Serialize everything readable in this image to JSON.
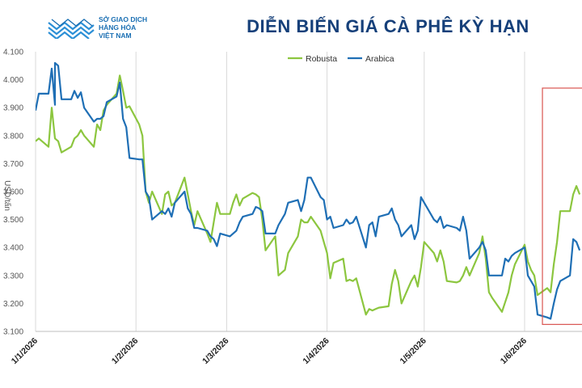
{
  "header": {
    "logo_lines": [
      "SỞ GIAO DỊCH",
      "HÀNG HÓA",
      "VIỆT NAM"
    ],
    "title": "DIỄN BIẾN GIÁ CÀ PHÊ KỲ HẠN"
  },
  "colors": {
    "robusta": "#8cc63f",
    "arabica": "#1f6fb5",
    "title": "#16407a",
    "highlight_box": "#d9534f",
    "gridline": "#d9d9d9"
  },
  "chart_data": {
    "type": "line",
    "title": "DIỄN BIẾN GIÁ CÀ PHÊ KỲ HẠN",
    "ylabel": "USD/tấn",
    "xlabel": "",
    "ylim": [
      3100,
      4100
    ],
    "yticks": [
      "3.100",
      "3.200",
      "3.300",
      "3.400",
      "3.500",
      "3.600",
      "3.700",
      "3.800",
      "3.900",
      "4.000",
      "4.100"
    ],
    "xlim": [
      "2026-01-01",
      "2026-06-18"
    ],
    "xticks": [
      {
        "date": "2026-01-01",
        "label": "1/1/2026"
      },
      {
        "date": "2026-02-01",
        "label": "1/2/2026"
      },
      {
        "date": "2026-03-01",
        "label": "1/3/2026"
      },
      {
        "date": "2026-04-01",
        "label": "1/4/2026"
      },
      {
        "date": "2026-05-01",
        "label": "1/5/2026"
      },
      {
        "date": "2026-06-01",
        "label": "1/6/2026"
      }
    ],
    "grid": {
      "vertical": true,
      "horizontal": false
    },
    "legend": "top-center",
    "highlight": {
      "x_from": "2026-06-08",
      "x_to": "2026-06-18",
      "y_from": 3125,
      "y_to": 3970
    },
    "series": [
      {
        "name": "Robusta",
        "color": "#8cc63f",
        "points": [
          [
            "2026-01-01",
            3780
          ],
          [
            "2026-01-02",
            3790
          ],
          [
            "2026-01-05",
            3760
          ],
          [
            "2026-01-06",
            3900
          ],
          [
            "2026-01-07",
            3790
          ],
          [
            "2026-01-08",
            3780
          ],
          [
            "2026-01-09",
            3740
          ],
          [
            "2026-01-12",
            3760
          ],
          [
            "2026-01-13",
            3790
          ],
          [
            "2026-01-14",
            3800
          ],
          [
            "2026-01-15",
            3820
          ],
          [
            "2026-01-16",
            3800
          ],
          [
            "2026-01-19",
            3760
          ],
          [
            "2026-01-20",
            3840
          ],
          [
            "2026-01-21",
            3820
          ],
          [
            "2026-01-22",
            3890
          ],
          [
            "2026-01-23",
            3910
          ],
          [
            "2026-01-26",
            3950
          ],
          [
            "2026-01-27",
            4015
          ],
          [
            "2026-01-28",
            3960
          ],
          [
            "2026-01-29",
            3900
          ],
          [
            "2026-01-30",
            3905
          ],
          [
            "2026-02-02",
            3840
          ],
          [
            "2026-02-03",
            3800
          ],
          [
            "2026-02-04",
            3600
          ],
          [
            "2026-02-05",
            3560
          ],
          [
            "2026-02-06",
            3600
          ],
          [
            "2026-02-09",
            3520
          ],
          [
            "2026-02-10",
            3590
          ],
          [
            "2026-02-11",
            3600
          ],
          [
            "2026-02-12",
            3550
          ],
          [
            "2026-02-13",
            3560
          ],
          [
            "2026-02-16",
            3650
          ],
          [
            "2026-02-17",
            3590
          ],
          [
            "2026-02-18",
            3530
          ],
          [
            "2026-02-19",
            3480
          ],
          [
            "2026-02-20",
            3530
          ],
          [
            "2026-02-23",
            3450
          ],
          [
            "2026-02-24",
            3420
          ],
          [
            "2026-02-25",
            3490
          ],
          [
            "2026-02-26",
            3560
          ],
          [
            "2026-02-27",
            3520
          ],
          [
            "2026-03-02",
            3520
          ],
          [
            "2026-03-03",
            3560
          ],
          [
            "2026-03-04",
            3590
          ],
          [
            "2026-03-05",
            3550
          ],
          [
            "2026-03-06",
            3575
          ],
          [
            "2026-03-09",
            3595
          ],
          [
            "2026-03-10",
            3590
          ],
          [
            "2026-03-11",
            3580
          ],
          [
            "2026-03-12",
            3500
          ],
          [
            "2026-03-13",
            3390
          ],
          [
            "2026-03-16",
            3440
          ],
          [
            "2026-03-17",
            3300
          ],
          [
            "2026-03-18",
            3310
          ],
          [
            "2026-03-19",
            3320
          ],
          [
            "2026-03-20",
            3380
          ],
          [
            "2026-03-23",
            3440
          ],
          [
            "2026-03-24",
            3500
          ],
          [
            "2026-03-25",
            3490
          ],
          [
            "2026-03-26",
            3490
          ],
          [
            "2026-03-27",
            3510
          ],
          [
            "2026-03-30",
            3460
          ],
          [
            "2026-03-31",
            3420
          ],
          [
            "2026-04-01",
            3380
          ],
          [
            "2026-04-02",
            3290
          ],
          [
            "2026-04-03",
            3345
          ],
          [
            "2026-04-06",
            3360
          ],
          [
            "2026-04-07",
            3280
          ],
          [
            "2026-04-08",
            3285
          ],
          [
            "2026-04-09",
            3280
          ],
          [
            "2026-04-10",
            3290
          ],
          [
            "2026-04-13",
            3160
          ],
          [
            "2026-04-14",
            3180
          ],
          [
            "2026-04-15",
            3175
          ],
          [
            "2026-04-16",
            3180
          ],
          [
            "2026-04-17",
            3185
          ],
          [
            "2026-04-20",
            3190
          ],
          [
            "2026-04-21",
            3270
          ],
          [
            "2026-04-22",
            3320
          ],
          [
            "2026-04-23",
            3280
          ],
          [
            "2026-04-24",
            3200
          ],
          [
            "2026-04-27",
            3280
          ],
          [
            "2026-04-28",
            3300
          ],
          [
            "2026-04-29",
            3260
          ],
          [
            "2026-04-30",
            3330
          ],
          [
            "2026-05-01",
            3420
          ],
          [
            "2026-05-04",
            3380
          ],
          [
            "2026-05-05",
            3350
          ],
          [
            "2026-05-06",
            3390
          ],
          [
            "2026-05-07",
            3350
          ],
          [
            "2026-05-08",
            3280
          ],
          [
            "2026-05-11",
            3275
          ],
          [
            "2026-05-12",
            3280
          ],
          [
            "2026-05-13",
            3300
          ],
          [
            "2026-05-14",
            3330
          ],
          [
            "2026-05-15",
            3300
          ],
          [
            "2026-05-18",
            3380
          ],
          [
            "2026-05-19",
            3440
          ],
          [
            "2026-05-20",
            3360
          ],
          [
            "2026-05-21",
            3240
          ],
          [
            "2026-05-22",
            3220
          ],
          [
            "2026-05-25",
            3170
          ],
          [
            "2026-05-26",
            3205
          ],
          [
            "2026-05-27",
            3240
          ],
          [
            "2026-05-28",
            3300
          ],
          [
            "2026-05-29",
            3340
          ],
          [
            "2026-06-01",
            3410
          ],
          [
            "2026-06-02",
            3350
          ],
          [
            "2026-06-03",
            3320
          ],
          [
            "2026-06-04",
            3300
          ],
          [
            "2026-06-05",
            3230
          ],
          [
            "2026-06-08",
            3255
          ],
          [
            "2026-06-09",
            3240
          ],
          [
            "2026-06-10",
            3340
          ],
          [
            "2026-06-11",
            3420
          ],
          [
            "2026-06-12",
            3530
          ],
          [
            "2026-06-15",
            3530
          ],
          [
            "2026-06-16",
            3590
          ],
          [
            "2026-06-17",
            3620
          ],
          [
            "2026-06-18",
            3590
          ]
        ]
      },
      {
        "name": "Arabica",
        "color": "#1f6fb5",
        "points": [
          [
            "2026-01-01",
            3890
          ],
          [
            "2026-01-02",
            3950
          ],
          [
            "2026-01-05",
            3950
          ],
          [
            "2026-01-06",
            4040
          ],
          [
            "2026-01-07",
            3910
          ],
          [
            "2026-01-07",
            4060
          ],
          [
            "2026-01-08",
            4050
          ],
          [
            "2026-01-09",
            3930
          ],
          [
            "2026-01-12",
            3930
          ],
          [
            "2026-01-13",
            3960
          ],
          [
            "2026-01-14",
            3935
          ],
          [
            "2026-01-15",
            3955
          ],
          [
            "2026-01-16",
            3900
          ],
          [
            "2026-01-19",
            3850
          ],
          [
            "2026-01-20",
            3860
          ],
          [
            "2026-01-21",
            3860
          ],
          [
            "2026-01-22",
            3870
          ],
          [
            "2026-01-23",
            3920
          ],
          [
            "2026-01-26",
            3940
          ],
          [
            "2026-01-27",
            3990
          ],
          [
            "2026-01-28",
            3860
          ],
          [
            "2026-01-29",
            3830
          ],
          [
            "2026-01-30",
            3720
          ],
          [
            "2026-02-02",
            3715
          ],
          [
            "2026-02-03",
            3715
          ],
          [
            "2026-02-04",
            3600
          ],
          [
            "2026-02-05",
            3580
          ],
          [
            "2026-02-06",
            3500
          ],
          [
            "2026-02-09",
            3530
          ],
          [
            "2026-02-10",
            3520
          ],
          [
            "2026-02-11",
            3540
          ],
          [
            "2026-02-12",
            3510
          ],
          [
            "2026-02-13",
            3560
          ],
          [
            "2026-02-16",
            3600
          ],
          [
            "2026-02-17",
            3540
          ],
          [
            "2026-02-18",
            3520
          ],
          [
            "2026-02-19",
            3470
          ],
          [
            "2026-02-20",
            3470
          ],
          [
            "2026-02-23",
            3460
          ],
          [
            "2026-02-24",
            3440
          ],
          [
            "2026-02-25",
            3430
          ],
          [
            "2026-02-26",
            3405
          ],
          [
            "2026-02-27",
            3450
          ],
          [
            "2026-03-02",
            3440
          ],
          [
            "2026-03-03",
            3450
          ],
          [
            "2026-03-04",
            3460
          ],
          [
            "2026-03-05",
            3490
          ],
          [
            "2026-03-06",
            3510
          ],
          [
            "2026-03-09",
            3520
          ],
          [
            "2026-03-10",
            3545
          ],
          [
            "2026-03-11",
            3540
          ],
          [
            "2026-03-12",
            3530
          ],
          [
            "2026-03-13",
            3450
          ],
          [
            "2026-03-16",
            3450
          ],
          [
            "2026-03-17",
            3480
          ],
          [
            "2026-03-18",
            3500
          ],
          [
            "2026-03-19",
            3520
          ],
          [
            "2026-03-20",
            3560
          ],
          [
            "2026-03-23",
            3570
          ],
          [
            "2026-03-24",
            3530
          ],
          [
            "2026-03-25",
            3570
          ],
          [
            "2026-03-26",
            3650
          ],
          [
            "2026-03-27",
            3650
          ],
          [
            "2026-03-30",
            3580
          ],
          [
            "2026-03-31",
            3570
          ],
          [
            "2026-04-01",
            3500
          ],
          [
            "2026-04-02",
            3510
          ],
          [
            "2026-04-03",
            3470
          ],
          [
            "2026-04-06",
            3480
          ],
          [
            "2026-04-07",
            3500
          ],
          [
            "2026-04-08",
            3485
          ],
          [
            "2026-04-09",
            3490
          ],
          [
            "2026-04-10",
            3510
          ],
          [
            "2026-04-13",
            3400
          ],
          [
            "2026-04-14",
            3480
          ],
          [
            "2026-04-15",
            3490
          ],
          [
            "2026-04-16",
            3440
          ],
          [
            "2026-04-17",
            3510
          ],
          [
            "2026-04-20",
            3520
          ],
          [
            "2026-04-21",
            3540
          ],
          [
            "2026-04-22",
            3500
          ],
          [
            "2026-04-23",
            3480
          ],
          [
            "2026-04-24",
            3440
          ],
          [
            "2026-04-27",
            3480
          ],
          [
            "2026-04-28",
            3430
          ],
          [
            "2026-04-29",
            3460
          ],
          [
            "2026-04-30",
            3580
          ],
          [
            "2026-05-01",
            3560
          ],
          [
            "2026-05-04",
            3500
          ],
          [
            "2026-05-05",
            3490
          ],
          [
            "2026-05-06",
            3510
          ],
          [
            "2026-05-07",
            3470
          ],
          [
            "2026-05-08",
            3480
          ],
          [
            "2026-05-11",
            3470
          ],
          [
            "2026-05-12",
            3460
          ],
          [
            "2026-05-13",
            3510
          ],
          [
            "2026-05-14",
            3460
          ],
          [
            "2026-05-15",
            3360
          ],
          [
            "2026-05-18",
            3400
          ],
          [
            "2026-05-19",
            3420
          ],
          [
            "2026-05-20",
            3390
          ],
          [
            "2026-05-21",
            3300
          ],
          [
            "2026-05-22",
            3300
          ],
          [
            "2026-05-25",
            3300
          ],
          [
            "2026-05-26",
            3360
          ],
          [
            "2026-05-27",
            3350
          ],
          [
            "2026-05-28",
            3370
          ],
          [
            "2026-05-29",
            3380
          ],
          [
            "2026-06-01",
            3400
          ],
          [
            "2026-06-02",
            3300
          ],
          [
            "2026-06-03",
            3280
          ],
          [
            "2026-06-04",
            3260
          ],
          [
            "2026-06-05",
            3160
          ],
          [
            "2026-06-08",
            3150
          ],
          [
            "2026-06-09",
            3145
          ],
          [
            "2026-06-10",
            3200
          ],
          [
            "2026-06-11",
            3250
          ],
          [
            "2026-06-12",
            3280
          ],
          [
            "2026-06-15",
            3300
          ],
          [
            "2026-06-16",
            3430
          ],
          [
            "2026-06-17",
            3420
          ],
          [
            "2026-06-18",
            3390
          ]
        ]
      }
    ]
  }
}
